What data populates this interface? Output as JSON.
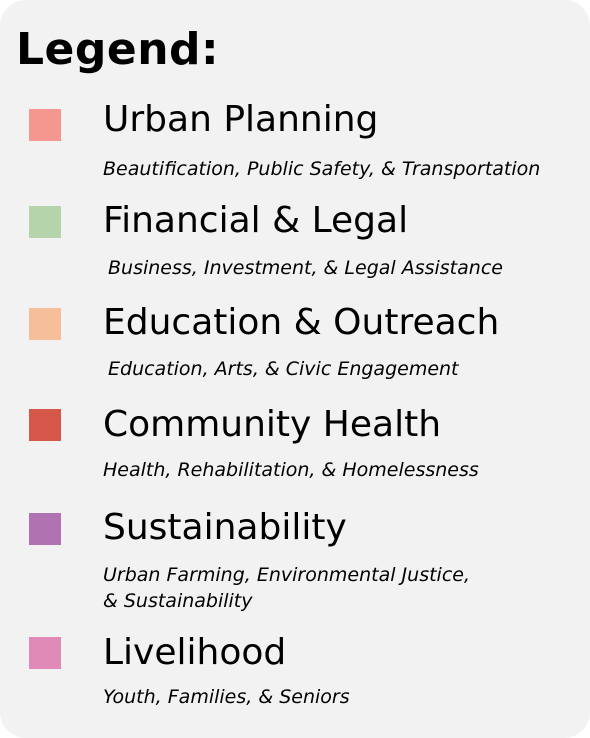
{
  "legend": {
    "title": "Legend:",
    "items": [
      {
        "label": "Urban Planning",
        "description": "Beautification, Public Safety, & Transportation",
        "color": "#f4978e"
      },
      {
        "label": "Financial & Legal",
        "description": "Business, Investment, & Legal Assistance",
        "color": "#b5d4ac"
      },
      {
        "label": "Education & Outreach",
        "description": "Education, Arts, & Civic Engagement",
        "color": "#f7be9a"
      },
      {
        "label": "Community Health",
        "description": "Health, Rehabilitation, & Homelessness",
        "color": "#d4574a"
      },
      {
        "label": "Sustainability",
        "description": "Urban Farming, Environmental Justice,\n& Sustainability",
        "color": "#b072b0"
      },
      {
        "label": "Livelihood",
        "description": "Youth, Families, & Seniors",
        "color": "#e08ab8"
      }
    ]
  }
}
